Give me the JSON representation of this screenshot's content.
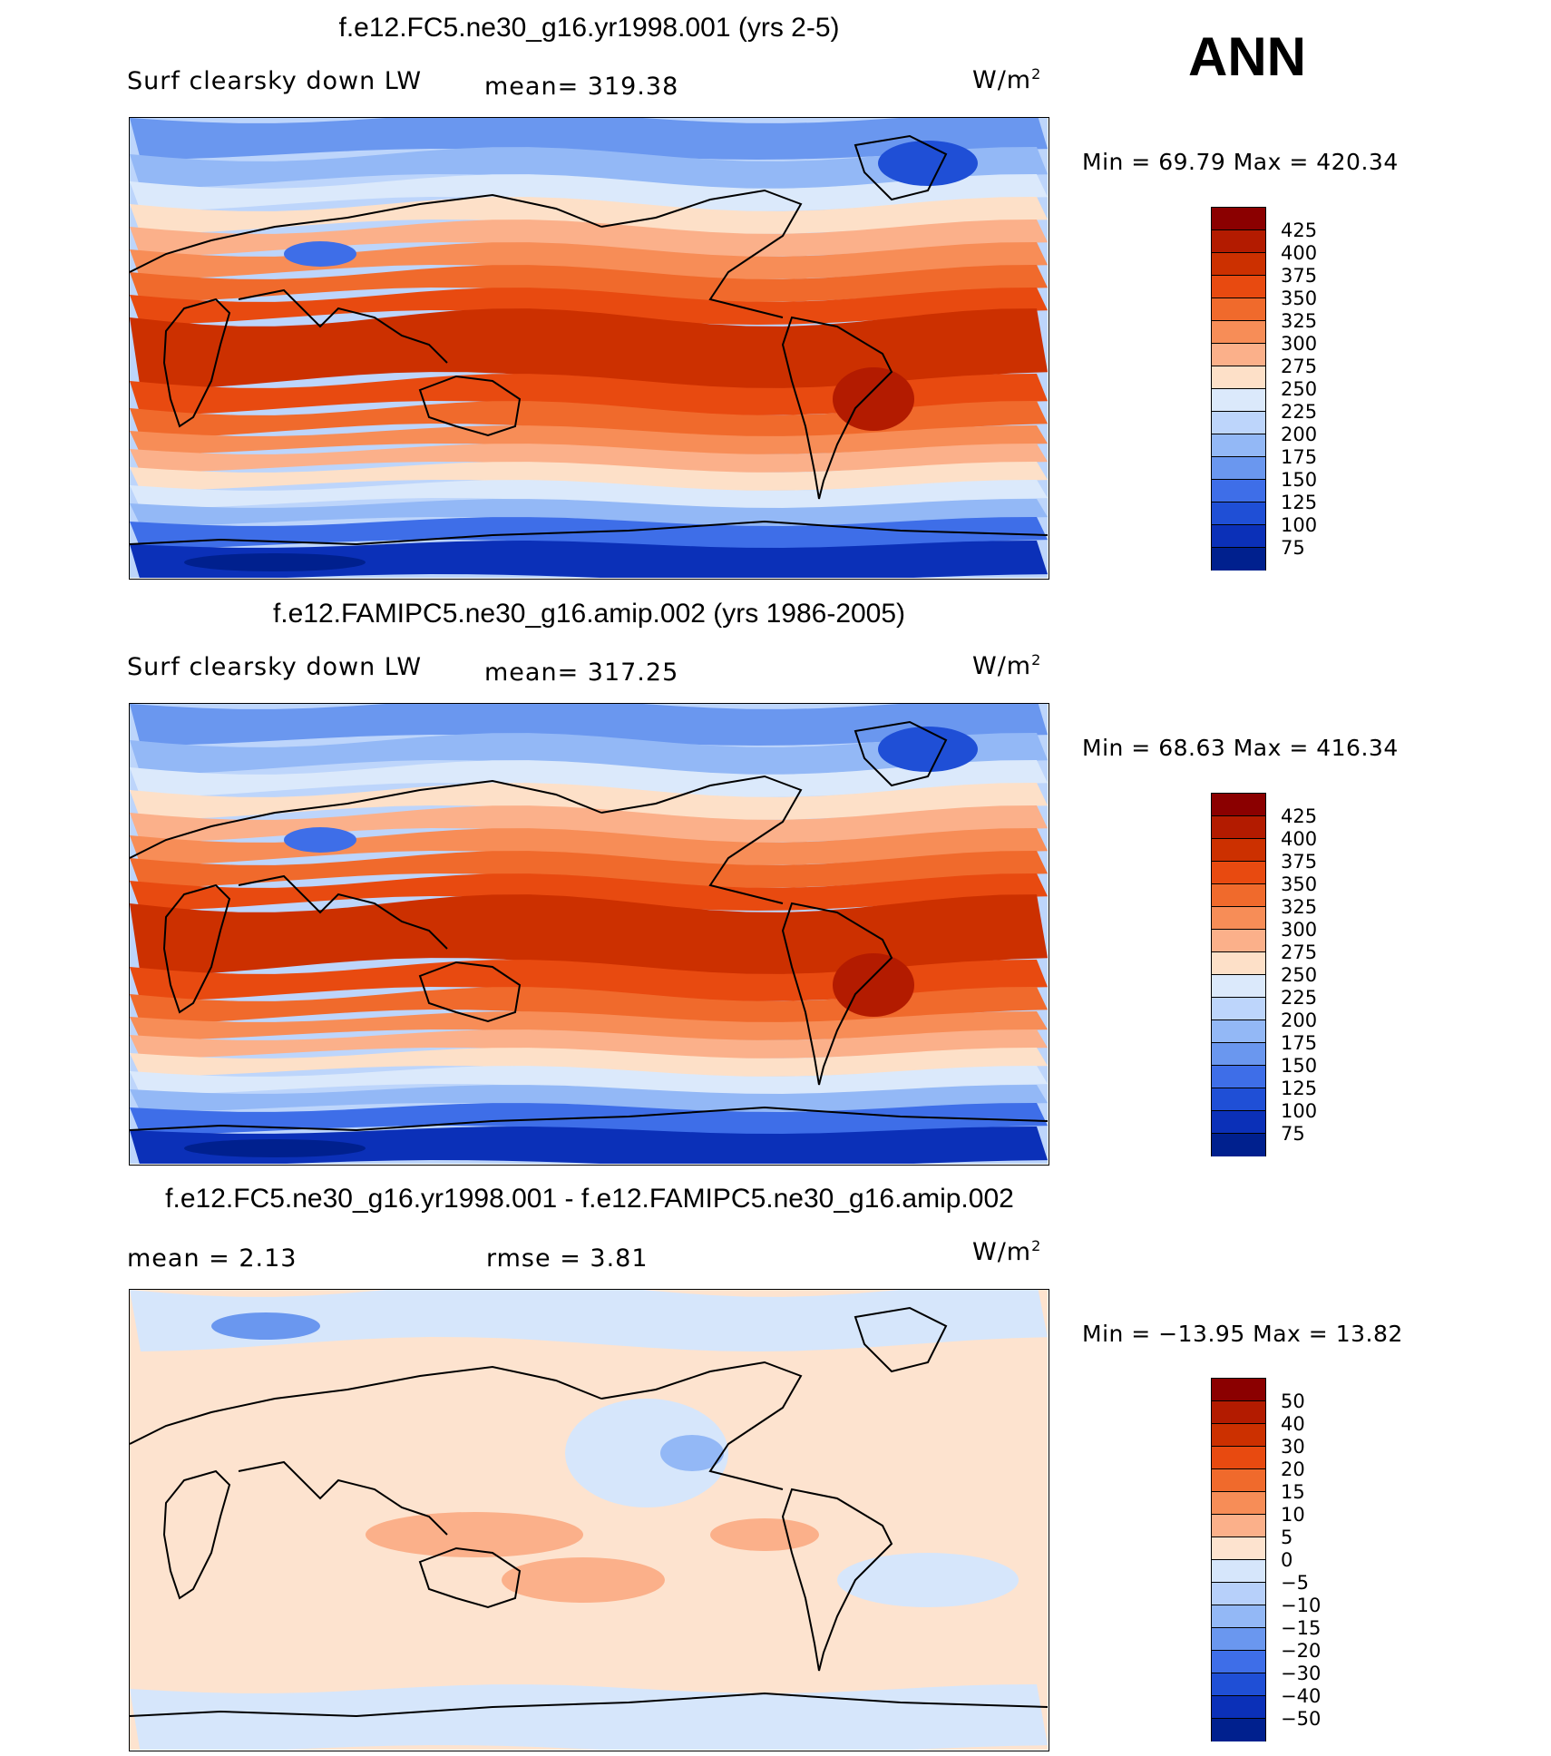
{
  "season": "ANN",
  "panels": [
    {
      "title": "f.e12.FC5.ne30_g16.yr1998.001 (yrs 2-5)",
      "left_label": "Surf clearsky down LW",
      "mid_label": "mean= 319.38",
      "units": "W/m",
      "units_sup": "2",
      "minmax": "Min =   69.79 Max = 420.34",
      "colorbar_ticks": [
        "425",
        "400",
        "375",
        "350",
        "325",
        "300",
        "275",
        "250",
        "225",
        "200",
        "175",
        "150",
        "125",
        "100",
        "75"
      ],
      "field": "abs"
    },
    {
      "title": "f.e12.FAMIPC5.ne30_g16.amip.002 (yrs 1986-2005)",
      "left_label": "Surf clearsky down LW",
      "mid_label": "mean= 317.25",
      "units": "W/m",
      "units_sup": "2",
      "minmax": "Min =   68.63 Max = 416.34",
      "colorbar_ticks": [
        "425",
        "400",
        "375",
        "350",
        "325",
        "300",
        "275",
        "250",
        "225",
        "200",
        "175",
        "150",
        "125",
        "100",
        "75"
      ],
      "field": "abs"
    },
    {
      "title": "f.e12.FC5.ne30_g16.yr1998.001 - f.e12.FAMIPC5.ne30_g16.amip.002",
      "left_label": "mean =     2.13",
      "mid_label": "rmse =     3.81",
      "units": "W/m",
      "units_sup": "2",
      "minmax": "Min = −13.95 Max =   13.82",
      "colorbar_ticks": [
        "50",
        "40",
        "30",
        "20",
        "15",
        "10",
        "5",
        "0",
        "−5",
        "−10",
        "−15",
        "−20",
        "−30",
        "−40",
        "−50"
      ],
      "field": "diff"
    }
  ],
  "colors": {
    "abs_palette": [
      "#8b0000",
      "#b31b00",
      "#cc3000",
      "#e84a10",
      "#f06a2c",
      "#f78d57",
      "#fbb08a",
      "#fde0c8",
      "#dbe9fb",
      "#bdd5fb",
      "#93b8f6",
      "#6a97ef",
      "#3e6ee8",
      "#1f4fd6",
      "#0b30b8",
      "#00208e"
    ],
    "diff_palette": [
      "#8b0000",
      "#b31b00",
      "#cc3000",
      "#e84a10",
      "#f06a2c",
      "#f78d57",
      "#fbb08a",
      "#fde3cf",
      "#d6e6fb",
      "#b7d0fa",
      "#93b8f6",
      "#6a97ef",
      "#3e6ee8",
      "#1f4fd6",
      "#0b30b8",
      "#00208e"
    ]
  }
}
